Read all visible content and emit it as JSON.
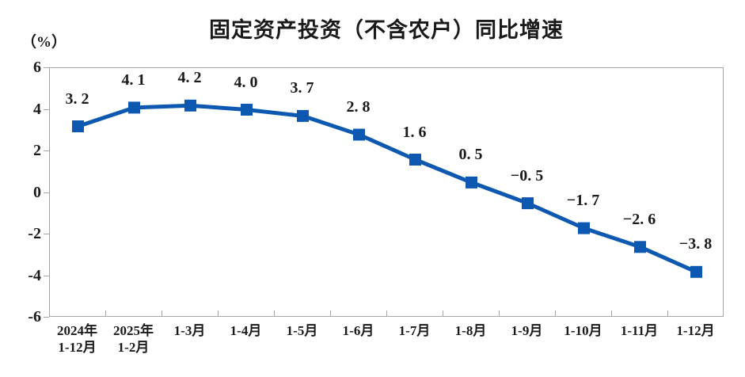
{
  "chart_data": {
    "type": "line",
    "title": "固定资产投资（不含农户）同比增速",
    "unit_label": "（%）",
    "categories": [
      [
        "2024年",
        "1-12月"
      ],
      [
        "2025年",
        "1-2月"
      ],
      [
        "1-3月"
      ],
      [
        "1-4月"
      ],
      [
        "1-5月"
      ],
      [
        "1-6月"
      ],
      [
        "1-7月"
      ],
      [
        "1-8月"
      ],
      [
        "1-9月"
      ],
      [
        "1-10月"
      ],
      [
        "1-11月"
      ],
      [
        "1-12月"
      ]
    ],
    "values": [
      3.2,
      4.1,
      4.2,
      4.0,
      3.7,
      2.8,
      1.6,
      0.5,
      -0.5,
      -1.7,
      -2.6,
      -3.8
    ],
    "point_labels": [
      "3. 2",
      "4. 1",
      "4. 2",
      "4. 0",
      "3. 7",
      "2. 8",
      "1. 6",
      "0. 5",
      "−0. 5",
      "−1. 7",
      "−2. 6",
      "−3. 8"
    ],
    "ylim": [
      -6,
      6
    ],
    "yticks": [
      6,
      4,
      2,
      0,
      -2,
      -4,
      -6
    ],
    "grid": false,
    "legend_position": "none",
    "line_color": "#0d58b0",
    "marker_shape": "square",
    "frame_color": "#a6a6a6",
    "text_color": "#1a1a1a"
  }
}
